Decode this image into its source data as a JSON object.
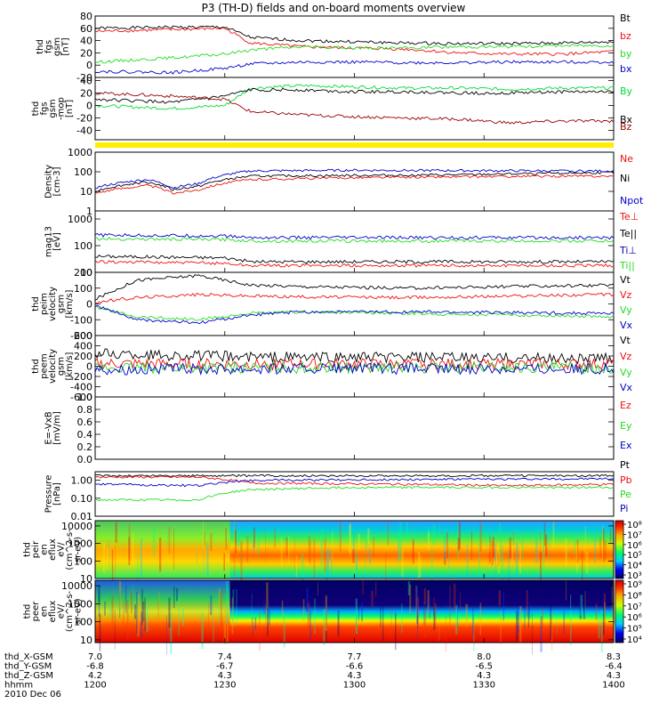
{
  "title": "P3 (TH-D) fields and on-board moments overview",
  "colors": {
    "black": "#000000",
    "red": "#ee1111",
    "green": "#22dd22",
    "blue": "#0000cc",
    "darkred": "#990000",
    "brightgreen": "#00dd33",
    "yellow": "#ffee00"
  },
  "chart_data": [
    {
      "type": "line",
      "ylabel": [
        "thd",
        "fgs",
        "gsm",
        "[nT]"
      ],
      "ylim": [
        -20,
        80
      ],
      "yticks": [
        "80",
        "60",
        "40",
        "20",
        "0",
        "-20"
      ],
      "legend": [
        {
          "name": "Bt",
          "color": "black"
        },
        {
          "name": "bz",
          "color": "red"
        },
        {
          "name": "by",
          "color": "green"
        },
        {
          "name": "bx",
          "color": "blue"
        }
      ],
      "series": [
        {
          "name": "Bt",
          "color": "black",
          "x": [
            0,
            0.15,
            0.25,
            0.3,
            0.4,
            0.5,
            0.6,
            0.7,
            0.8,
            0.9,
            1.0
          ],
          "y": [
            60,
            62,
            62,
            45,
            40,
            38,
            36,
            35,
            35,
            36,
            38
          ]
        },
        {
          "name": "bz",
          "color": "red",
          "x": [
            0,
            0.15,
            0.25,
            0.3,
            0.4,
            0.5,
            0.6,
            0.7,
            0.8,
            0.9,
            1.0
          ],
          "y": [
            55,
            58,
            60,
            36,
            30,
            28,
            26,
            20,
            18,
            18,
            22
          ]
        },
        {
          "name": "by",
          "color": "green",
          "x": [
            0,
            0.15,
            0.25,
            0.3,
            0.4,
            0.5,
            0.6,
            0.7,
            0.8,
            0.9,
            1.0
          ],
          "y": [
            5,
            12,
            18,
            25,
            30,
            28,
            28,
            30,
            30,
            32,
            32
          ]
        },
        {
          "name": "bx",
          "color": "blue",
          "x": [
            0,
            0.15,
            0.25,
            0.3,
            0.4,
            0.5,
            0.6,
            0.7,
            0.8,
            0.9,
            1.0
          ],
          "y": [
            -10,
            -12,
            -5,
            2,
            5,
            5,
            4,
            4,
            5,
            5,
            5
          ]
        }
      ]
    },
    {
      "type": "line",
      "ylabel": [
        "thd",
        "fgs",
        "gsm",
        "-mop",
        "[nT]"
      ],
      "ylim": [
        -55,
        45
      ],
      "yticks": [
        "40",
        "20",
        "0",
        "-20",
        "-40"
      ],
      "legend": [
        {
          "name": "By",
          "color": "brightgreen"
        },
        {
          "name": "Bx",
          "color": "black"
        },
        {
          "name": "Bz",
          "color": "darkred"
        }
      ],
      "series": [
        {
          "name": "By",
          "color": "brightgreen",
          "x": [
            0,
            0.15,
            0.25,
            0.3,
            0.4,
            0.5,
            0.6,
            0.7,
            0.8,
            0.9,
            1.0
          ],
          "y": [
            0,
            -5,
            0,
            28,
            32,
            30,
            28,
            28,
            26,
            28,
            28
          ]
        },
        {
          "name": "Bx",
          "color": "black",
          "x": [
            0,
            0.15,
            0.25,
            0.3,
            0.4,
            0.5,
            0.6,
            0.7,
            0.8,
            0.9,
            1.0
          ],
          "y": [
            10,
            5,
            15,
            25,
            25,
            22,
            22,
            20,
            20,
            22,
            22
          ]
        },
        {
          "name": "Bz",
          "color": "darkred",
          "x": [
            0,
            0.15,
            0.25,
            0.3,
            0.4,
            0.5,
            0.6,
            0.7,
            0.8,
            0.9,
            1.0
          ],
          "y": [
            20,
            15,
            10,
            -10,
            -15,
            -18,
            -20,
            -22,
            -28,
            -25,
            -25
          ]
        }
      ]
    },
    {
      "type": "line",
      "ylabel": [
        "Density",
        "[cm-3]"
      ],
      "scale": "log",
      "ylim": [
        1,
        1000
      ],
      "yticks": [
        "1000",
        "100",
        "10",
        "1"
      ],
      "legend": [
        {
          "name": "Ne",
          "color": "red"
        },
        {
          "name": "Ni",
          "color": "black"
        },
        {
          "name": "Npot",
          "color": "blue"
        }
      ],
      "series": [
        {
          "name": "Ne",
          "color": "red",
          "x": [
            0,
            0.1,
            0.15,
            0.2,
            0.3,
            0.5,
            0.7,
            0.9,
            1.0
          ],
          "y": [
            8,
            20,
            8,
            12,
            40,
            50,
            55,
            60,
            60
          ]
        },
        {
          "name": "Ni",
          "color": "black",
          "x": [
            0,
            0.1,
            0.15,
            0.2,
            0.3,
            0.5,
            0.7,
            0.9,
            1.0
          ],
          "y": [
            10,
            30,
            12,
            18,
            60,
            65,
            70,
            85,
            90
          ]
        },
        {
          "name": "Npot",
          "color": "blue",
          "x": [
            0,
            0.1,
            0.15,
            0.2,
            0.3,
            0.5,
            0.7,
            0.9,
            1.0
          ],
          "y": [
            15,
            40,
            15,
            25,
            110,
            120,
            115,
            110,
            110
          ]
        }
      ]
    },
    {
      "type": "line",
      "ylabel": [
        "mag13",
        "[eV]"
      ],
      "scale": "log",
      "ylim": [
        10,
        2000
      ],
      "yticks": [
        "1000",
        "100",
        "10"
      ],
      "legend": [
        {
          "name": "Te⊥",
          "color": "red"
        },
        {
          "name": "Te||",
          "color": "black"
        },
        {
          "name": "Ti⊥",
          "color": "blue"
        },
        {
          "name": "Ti||",
          "color": "green"
        }
      ],
      "series": [
        {
          "name": "Te⊥",
          "color": "red",
          "x": [
            0,
            0.25,
            0.3,
            1.0
          ],
          "y": [
            25,
            22,
            18,
            18
          ]
        },
        {
          "name": "Te||",
          "color": "black",
          "x": [
            0,
            0.25,
            0.3,
            1.0
          ],
          "y": [
            40,
            35,
            25,
            25
          ]
        },
        {
          "name": "Ti⊥",
          "color": "blue",
          "x": [
            0,
            0.25,
            0.3,
            1.0
          ],
          "y": [
            250,
            230,
            200,
            200
          ]
        },
        {
          "name": "Ti||",
          "color": "green",
          "x": [
            0,
            0.25,
            0.3,
            1.0
          ],
          "y": [
            180,
            170,
            150,
            150
          ]
        }
      ]
    },
    {
      "type": "line",
      "ylabel": [
        "thd",
        "peim",
        "velocity",
        "gsm",
        "[km/s]"
      ],
      "ylim": [
        -200,
        200
      ],
      "yticks": [
        "200",
        "100",
        "0",
        "-100",
        "-200"
      ],
      "legend": [
        {
          "name": "Vt",
          "color": "black"
        },
        {
          "name": "Vz",
          "color": "red"
        },
        {
          "name": "Vy",
          "color": "green"
        },
        {
          "name": "Vx",
          "color": "blue"
        }
      ],
      "series": [
        {
          "name": "Vt",
          "color": "black",
          "x": [
            0,
            0.08,
            0.2,
            0.3,
            0.4,
            0.6,
            0.8,
            1.0
          ],
          "y": [
            30,
            150,
            180,
            120,
            110,
            100,
            110,
            120
          ]
        },
        {
          "name": "Vz",
          "color": "red",
          "x": [
            0,
            0.08,
            0.2,
            0.3,
            0.4,
            0.6,
            0.8,
            1.0
          ],
          "y": [
            10,
            40,
            60,
            50,
            45,
            40,
            50,
            60
          ]
        },
        {
          "name": "Vy",
          "color": "green",
          "x": [
            0,
            0.08,
            0.2,
            0.3,
            0.4,
            0.6,
            0.8,
            1.0
          ],
          "y": [
            -20,
            -80,
            -100,
            -60,
            -50,
            -60,
            -70,
            -80
          ]
        },
        {
          "name": "Vx",
          "color": "blue",
          "x": [
            0,
            0.08,
            0.2,
            0.3,
            0.4,
            0.6,
            0.8,
            1.0
          ],
          "y": [
            -10,
            -100,
            -120,
            -70,
            -50,
            -50,
            -55,
            -60
          ]
        }
      ]
    },
    {
      "type": "line",
      "ylabel": [
        "thd",
        "peem",
        "velocity",
        "gsm",
        "[km/s]"
      ],
      "ylim": [
        -600,
        600
      ],
      "yticks": [
        "600",
        "400",
        "200",
        "0",
        "-200",
        "-400",
        "-600"
      ],
      "legend": [
        {
          "name": "Vt",
          "color": "black"
        },
        {
          "name": "Vz",
          "color": "red"
        },
        {
          "name": "Vy",
          "color": "green"
        },
        {
          "name": "Vx",
          "color": "blue"
        }
      ],
      "series": [
        {
          "name": "Vt",
          "color": "black",
          "x": [
            0,
            0.3,
            1.0
          ],
          "y": [
            250,
            180,
            150
          ]
        },
        {
          "name": "Vz",
          "color": "red",
          "x": [
            0,
            0.3,
            1.0
          ],
          "y": [
            50,
            40,
            40
          ]
        },
        {
          "name": "Vy",
          "color": "green",
          "x": [
            0,
            0.3,
            1.0
          ],
          "y": [
            -30,
            -30,
            -30
          ]
        },
        {
          "name": "Vx",
          "color": "blue",
          "x": [
            0,
            0.3,
            1.0
          ],
          "y": [
            -60,
            -50,
            -50
          ]
        }
      ]
    },
    {
      "type": "line",
      "ylabel": [
        "E=-VxB",
        "[mV/m]"
      ],
      "ylim": [
        0,
        1
      ],
      "yticks": [
        "1.0",
        "0.8",
        "0.6",
        "0.4",
        "0.2",
        "0.0"
      ],
      "legend": [
        {
          "name": "Ez",
          "color": "red"
        },
        {
          "name": "Ey",
          "color": "green"
        },
        {
          "name": "Ex",
          "color": "blue"
        }
      ],
      "series": []
    },
    {
      "type": "line",
      "ylabel": [
        "Pressure",
        "[nPa]"
      ],
      "scale": "log",
      "ylim": [
        0.01,
        3
      ],
      "yticks": [
        "1.00",
        "0.10",
        "0.01"
      ],
      "legend": [
        {
          "name": "Pt",
          "color": "black"
        },
        {
          "name": "Pb",
          "color": "red"
        },
        {
          "name": "Pe",
          "color": "green"
        },
        {
          "name": "Pi",
          "color": "blue"
        }
      ],
      "series": [
        {
          "name": "Pt",
          "color": "black",
          "x": [
            0,
            0.3,
            1.0
          ],
          "y": [
            1.8,
            1.8,
            1.8
          ]
        },
        {
          "name": "Pb",
          "color": "red",
          "x": [
            0,
            0.2,
            0.3,
            0.6,
            0.8,
            1.0
          ],
          "y": [
            1.5,
            1.5,
            0.7,
            0.6,
            0.5,
            0.6
          ]
        },
        {
          "name": "Pe",
          "color": "green",
          "x": [
            0,
            0.2,
            0.3,
            0.5,
            1.0
          ],
          "y": [
            0.08,
            0.08,
            0.3,
            0.4,
            0.4
          ]
        },
        {
          "name": "Pi",
          "color": "blue",
          "x": [
            0,
            0.2,
            0.3,
            0.6,
            1.0
          ],
          "y": [
            0.6,
            0.5,
            1.0,
            1.1,
            1.2
          ]
        }
      ]
    },
    {
      "type": "heatmap",
      "ylabel": [
        "thd",
        "peir",
        "en",
        "eflux",
        "eV/",
        "(cm^2-s-",
        "sr-eV)"
      ],
      "scale": "log",
      "ylim": [
        10,
        20000
      ],
      "yticks": [
        "10000",
        "1000",
        "100",
        "10"
      ],
      "colorbar": {
        "labels": [
          "10⁸",
          "10⁷",
          "10⁶",
          "10⁵",
          "10⁴",
          "10³"
        ]
      }
    },
    {
      "type": "heatmap",
      "ylabel": [
        "thd",
        "peer",
        "en",
        "eflux",
        "eV/",
        "(cm^2-s-",
        "sr-eV)"
      ],
      "scale": "log",
      "ylim": [
        7,
        20000
      ],
      "yticks": [
        "10000",
        "1000",
        "100",
        "10"
      ],
      "colorbar": {
        "labels": [
          "10⁹",
          "10⁸",
          "10⁷",
          "10⁶",
          "10⁵",
          "10⁴"
        ]
      }
    }
  ],
  "xaxis": {
    "rows": [
      {
        "label": "thd_X-GSM",
        "values": [
          "7.0",
          "7.4",
          "7.7",
          "8.0",
          "8.3"
        ]
      },
      {
        "label": "thd_Y-GSM",
        "values": [
          "-6.8",
          "-6.7",
          "-6.6",
          "-6.5",
          "-6.4"
        ]
      },
      {
        "label": "thd_Z-GSM",
        "values": [
          "4.2",
          "4.3",
          "4.3",
          "4.3",
          "4.3"
        ]
      },
      {
        "label": "hhmm",
        "values": [
          "1200",
          "1230",
          "1300",
          "1330",
          "1400"
        ]
      }
    ],
    "date": "2010 Dec 06"
  }
}
